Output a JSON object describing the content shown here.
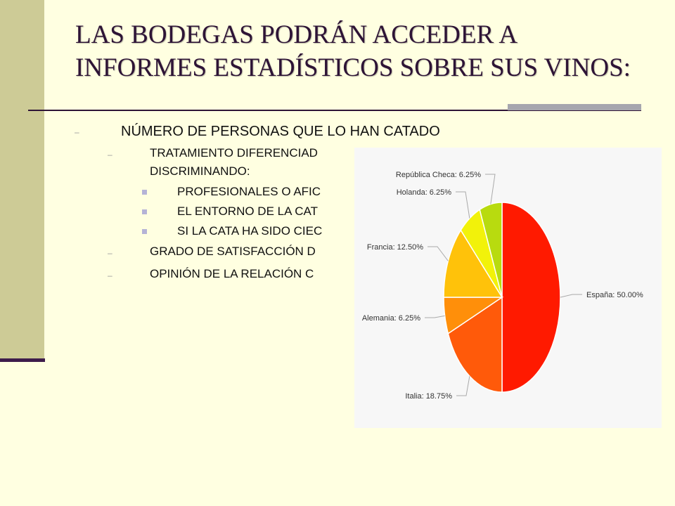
{
  "slide": {
    "title": "LAS BODEGAS PODRÁN ACCEDER A INFORMES ESTADÍSTICOS SOBRE SUS VINOS:"
  },
  "bullets": [
    {
      "level": 1,
      "text": "NÚMERO DE PERSONAS QUE LO HAN CATADO"
    },
    {
      "level": 2,
      "text": "TRATAMIENTO DIFERENCIAD"
    },
    {
      "level": 2,
      "text": "DISCRIMINANDO:"
    },
    {
      "level": 3,
      "text": "PROFESIONALES  O AFIC"
    },
    {
      "level": 3,
      "text": "EL ENTORNO DE LA CAT"
    },
    {
      "level": 3,
      "text": "SI LA CATA HA SIDO CIEC"
    },
    {
      "level": 2,
      "text": "GRADO DE SATISFACCIÓN  D"
    },
    {
      "level": 2,
      "text": "OPINIÓN DE LA RELACIÓN C"
    }
  ],
  "colors": {
    "background": "#ffffe1",
    "title": "#2e1436",
    "sidebar": "#cdcb96"
  },
  "chart_data": {
    "type": "pie",
    "slices": [
      {
        "label": "España: 50.00%",
        "value": 50.0,
        "color": "#ff1a00"
      },
      {
        "label": "Italia: 18.75%",
        "value": 18.75,
        "color": "#ff5a0a"
      },
      {
        "label": "Alemania: 6.25%",
        "value": 6.25,
        "color": "#ff8f0a"
      },
      {
        "label": "Francia: 12.50%",
        "value": 12.5,
        "color": "#ffc20a"
      },
      {
        "label": "Holanda: 6.25%",
        "value": 6.25,
        "color": "#f2f20a"
      },
      {
        "label": "República Checa: 6.25%",
        "value": 6.25,
        "color": "#b8db0f"
      }
    ]
  }
}
